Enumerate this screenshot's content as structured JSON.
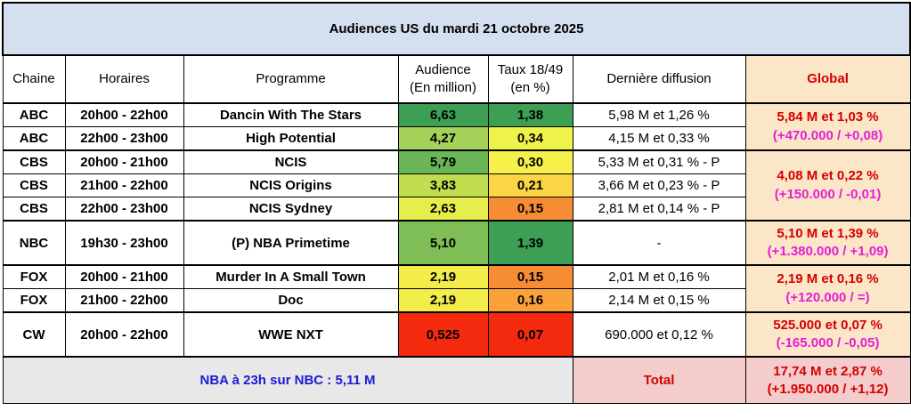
{
  "title": "Audiences US du mardi 21 octobre 2025",
  "headers": {
    "chaine": "Chaine",
    "horaires": "Horaires",
    "programme": "Programme",
    "audience_l1": "Audience",
    "audience_l2": "(En million)",
    "taux_l1": "Taux 18/49",
    "taux_l2": "(en %)",
    "derniere": "Dernière diffusion",
    "global": "Global"
  },
  "rows": [
    {
      "chaine": "ABC",
      "horaires": "20h00 - 22h00",
      "programme": "Dancin With The Stars",
      "audience": "6,63",
      "taux": "1,38",
      "derniere": "5,98 M et 1,26 %",
      "aud_color": "#3d9f54",
      "taux_color": "#3d9f54"
    },
    {
      "chaine": "ABC",
      "horaires": "22h00 - 23h00",
      "programme": "High Potential",
      "audience": "4,27",
      "taux": "0,34",
      "derniere": "4,15 M et 0,33 %",
      "aud_color": "#a6d15a",
      "taux_color": "#eef34a"
    },
    {
      "chaine": "CBS",
      "horaires": "20h00 - 21h00",
      "programme": "NCIS",
      "audience": "5,79",
      "taux": "0,30",
      "derniere": "5,33 M et 0,31 % - P",
      "aud_color": "#6ab558",
      "taux_color": "#f5f04a"
    },
    {
      "chaine": "CBS",
      "horaires": "21h00 - 22h00",
      "programme": "NCIS Origins",
      "audience": "3,83",
      "taux": "0,21",
      "derniere": "3,66 M et 0,23 % - P",
      "aud_color": "#c1dc4e",
      "taux_color": "#fbd546"
    },
    {
      "chaine": "CBS",
      "horaires": "22h00 - 23h00",
      "programme": "NCIS Sydney",
      "audience": "2,63",
      "taux": "0,15",
      "derniere": "2,81 M et 0,14 % - P",
      "aud_color": "#e6ee4c",
      "taux_color": "#f68c33"
    },
    {
      "chaine": "NBC",
      "horaires": "19h30 - 23h00",
      "programme": "(P) NBA Primetime",
      "audience": "5,10",
      "taux": "1,39",
      "derniere": "-",
      "aud_color": "#7fbe56",
      "taux_color": "#3d9f54"
    },
    {
      "chaine": "FOX",
      "horaires": "20h00 - 21h00",
      "programme": "Murder In A Small Town",
      "audience": "2,19",
      "taux": "0,15",
      "derniere": "2,01 M et 0,16 %",
      "aud_color": "#f2ed4a",
      "taux_color": "#f68c33"
    },
    {
      "chaine": "FOX",
      "horaires": "21h00 - 22h00",
      "programme": "Doc",
      "audience": "2,19",
      "taux": "0,16",
      "derniere": "2,14 M et 0,15 %",
      "aud_color": "#f2ed4a",
      "taux_color": "#f8a239"
    },
    {
      "chaine": "CW",
      "horaires": "20h00 - 22h00",
      "programme": "WWE NXT",
      "audience": "0,525",
      "taux": "0,07",
      "derniere": "690.000 et 0,12 %",
      "aud_color": "#f42a0e",
      "taux_color": "#f42a0e"
    }
  ],
  "globals": [
    {
      "line1": "5,84 M et 1,03 %",
      "line2": "(+470.000 / +0,08)"
    },
    {
      "line1": "4,08 M et 0,22 %",
      "line2": "(+150.000 / -0,01)"
    },
    {
      "line1": "5,10 M et 1,39 %",
      "line2": "(+1.380.000 / +1,09)"
    },
    {
      "line1": "2,19 M et 0,16 %",
      "line2": "(+120.000 / =)"
    },
    {
      "line1": "525.000 et 0,07 %",
      "line2": "(-165.000 / -0,05)"
    }
  ],
  "footer": {
    "note": "NBA à 23h sur NBC : 5,11 M",
    "total_label": "Total",
    "total_line1": "17,74 M et 2,87 %",
    "total_line2": "(+1.950.000 / +1,12)"
  }
}
